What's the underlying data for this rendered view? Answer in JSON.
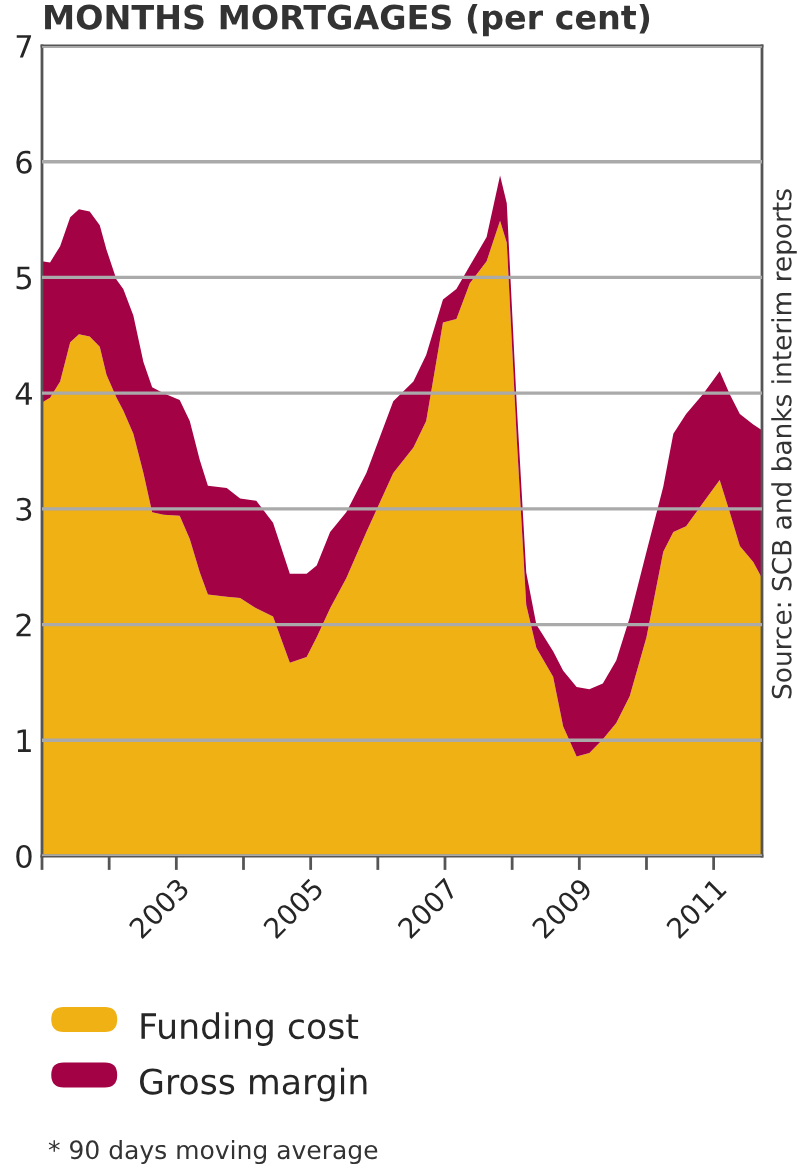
{
  "chart_data": {
    "type": "area",
    "stacked": true,
    "title": "MONTHS MORTGAGES (per cent)",
    "annotations": [
      "Source: SCB and banks interim reports",
      "* 90 days moving average"
    ],
    "x": [
      2001.0,
      2001.12,
      2001.27,
      2001.42,
      2001.55,
      2001.71,
      2001.86,
      2001.96,
      2002.11,
      2002.21,
      2002.36,
      2002.51,
      2002.64,
      2002.81,
      2003.05,
      2003.2,
      2003.35,
      2003.47,
      2003.75,
      2003.95,
      2004.19,
      2004.44,
      2004.69,
      2004.94,
      2005.09,
      2005.29,
      2005.53,
      2005.83,
      2006.23,
      2006.53,
      2006.72,
      2006.97,
      2007.17,
      2007.37,
      2007.62,
      2007.82,
      2007.92,
      2008.07,
      2008.21,
      2008.36,
      2008.61,
      2008.76,
      2008.96,
      2009.15,
      2009.35,
      2009.55,
      2009.75,
      2010.0,
      2010.25,
      2010.4,
      2010.59,
      2010.84,
      2011.09,
      2011.24,
      2011.39,
      2011.59,
      2011.72
    ],
    "series": [
      {
        "name": "Funding cost",
        "color": "#efb114",
        "values": [
          3.92,
          3.96,
          4.1,
          4.44,
          4.51,
          4.49,
          4.4,
          4.16,
          3.96,
          3.85,
          3.65,
          3.31,
          2.97,
          2.95,
          2.94,
          2.74,
          2.45,
          2.26,
          2.24,
          2.23,
          2.14,
          2.07,
          1.67,
          1.72,
          1.89,
          2.14,
          2.4,
          2.8,
          3.31,
          3.53,
          3.76,
          4.61,
          4.64,
          4.95,
          5.14,
          5.49,
          5.3,
          3.59,
          2.17,
          1.8,
          1.55,
          1.12,
          0.86,
          0.89,
          1.01,
          1.15,
          1.38,
          1.89,
          2.63,
          2.8,
          2.85,
          3.05,
          3.25,
          2.97,
          2.68,
          2.54,
          2.4
        ]
      },
      {
        "name": "Gross margin",
        "color": "#a30245",
        "values": [
          1.22,
          1.17,
          1.17,
          1.08,
          1.08,
          1.08,
          1.05,
          1.08,
          1.02,
          1.05,
          1.02,
          0.96,
          1.08,
          1.05,
          1.0,
          1.02,
          0.97,
          0.94,
          0.94,
          0.86,
          0.93,
          0.81,
          0.77,
          0.72,
          0.62,
          0.66,
          0.57,
          0.51,
          0.62,
          0.57,
          0.57,
          0.2,
          0.26,
          0.15,
          0.21,
          0.39,
          0.34,
          0.29,
          0.28,
          0.2,
          0.22,
          0.48,
          0.6,
          0.55,
          0.48,
          0.54,
          0.68,
          0.74,
          0.56,
          0.85,
          0.97,
          0.94,
          0.94,
          1.02,
          1.14,
          1.19,
          1.28
        ]
      }
    ],
    "xlim": [
      2001.0,
      2011.72
    ],
    "xticks": [
      {
        "value": 2001,
        "label": null
      },
      {
        "value": 2002,
        "label": null
      },
      {
        "value": 2003,
        "label": "2003"
      },
      {
        "value": 2004,
        "label": null
      },
      {
        "value": 2005,
        "label": "2005"
      },
      {
        "value": 2006,
        "label": null
      },
      {
        "value": 2007,
        "label": "2007"
      },
      {
        "value": 2008,
        "label": null
      },
      {
        "value": 2009,
        "label": "2009"
      },
      {
        "value": 2010,
        "label": null
      },
      {
        "value": 2011,
        "label": "2011"
      }
    ],
    "ylim": [
      0,
      7
    ],
    "yticks": [
      0,
      1,
      2,
      3,
      4,
      5,
      6,
      7
    ],
    "grid": "y",
    "legend": "bottom"
  }
}
